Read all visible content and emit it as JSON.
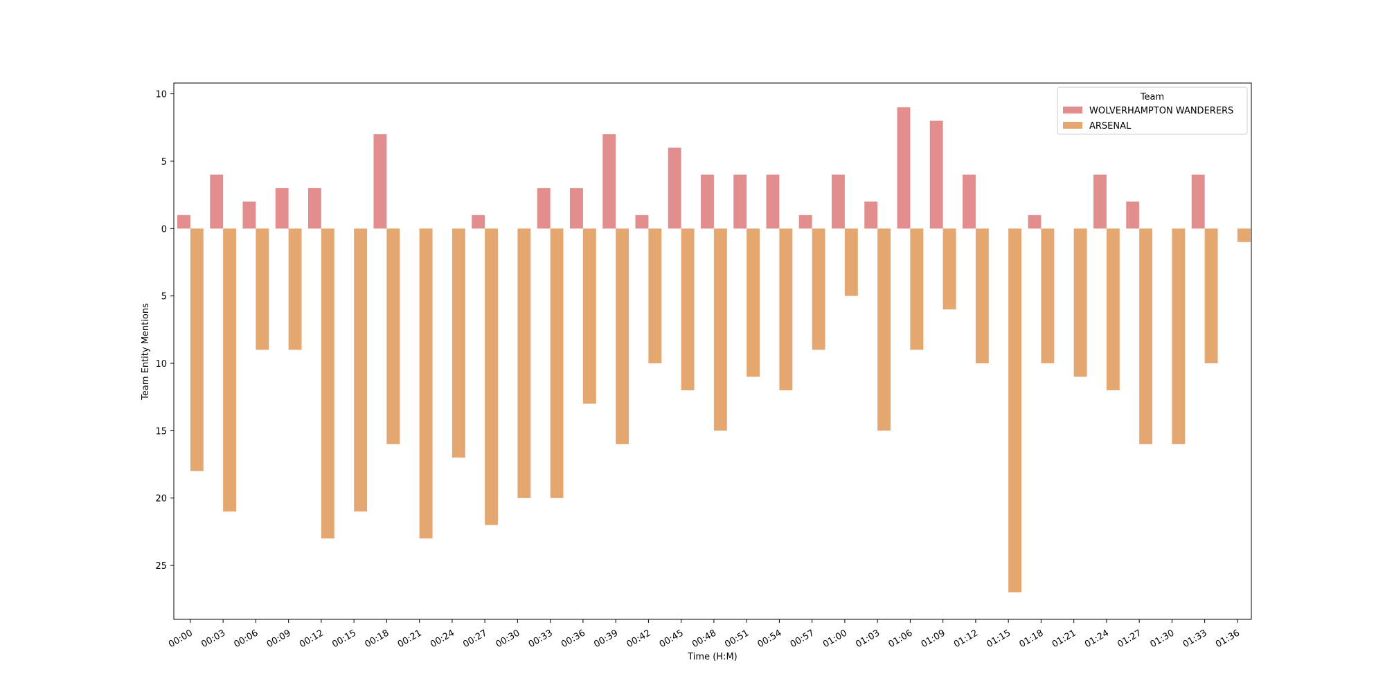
{
  "chart_data": {
    "type": "bar",
    "title": "",
    "xlabel": "Time (H:M)",
    "ylabel": "Team Entity Mentions",
    "categories": [
      "00:00",
      "00:03",
      "00:06",
      "00:09",
      "00:12",
      "00:15",
      "00:18",
      "00:21",
      "00:24",
      "00:27",
      "00:30",
      "00:33",
      "00:36",
      "00:39",
      "00:42",
      "00:45",
      "00:48",
      "00:51",
      "00:54",
      "00:57",
      "01:00",
      "01:03",
      "01:06",
      "01:09",
      "01:12",
      "01:15",
      "01:18",
      "01:21",
      "01:24",
      "01:27",
      "01:30",
      "01:33",
      "01:36"
    ],
    "series": [
      {
        "name": "WOLVERHAMPTON WANDERERS",
        "color": "#e28e8e",
        "values": [
          1,
          4,
          2,
          3,
          3,
          0,
          7,
          0,
          0,
          1,
          0,
          3,
          3,
          7,
          1,
          6,
          4,
          4,
          4,
          1,
          4,
          2,
          9,
          8,
          4,
          0,
          1,
          0,
          4,
          2,
          0,
          4,
          0
        ]
      },
      {
        "name": "ARSENAL",
        "color": "#e4a76f",
        "values": [
          -18,
          -21,
          -9,
          -9,
          -23,
          -21,
          -16,
          -23,
          -17,
          -22,
          -20,
          -20,
          -13,
          -16,
          -10,
          -12,
          -15,
          -11,
          -12,
          -9,
          -5,
          -15,
          -9,
          -6,
          -10,
          -27,
          -10,
          -11,
          -12,
          -16,
          -16,
          -10,
          -1
        ]
      }
    ],
    "ylim": [
      -29.0,
      10.8
    ],
    "y_ticks": [
      10,
      5,
      0,
      -5,
      -10,
      -15,
      -20,
      -25
    ],
    "y_tick_labels": [
      "10",
      "5",
      "0",
      "5",
      "10",
      "15",
      "20",
      "25"
    ],
    "grid": false,
    "legend": {
      "title": "Team",
      "placement": "top-right"
    }
  }
}
